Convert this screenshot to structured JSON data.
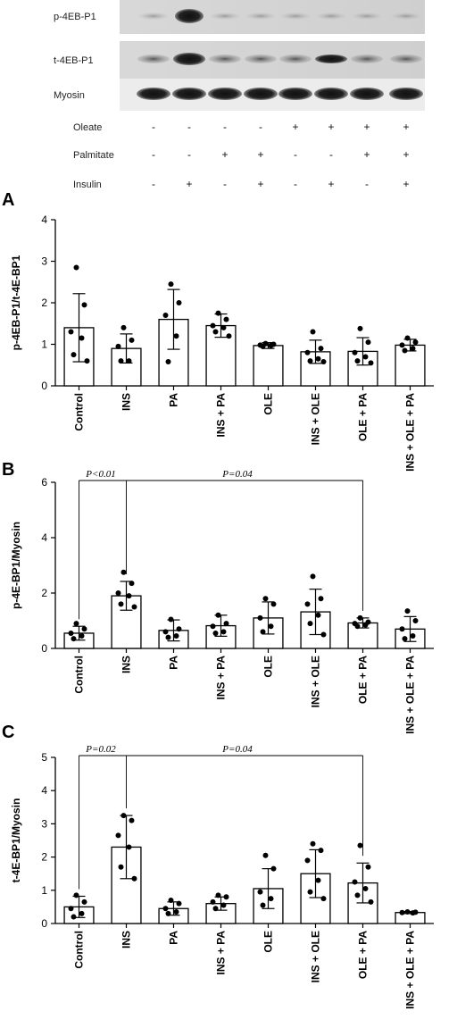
{
  "blot": {
    "bands": [
      {
        "label": "p-4EB-P1"
      },
      {
        "label": "t-4EB-P1"
      },
      {
        "label": "Myosin"
      }
    ],
    "treatments": [
      {
        "label": "Oleate",
        "signs": [
          "-",
          "-",
          "-",
          "-",
          "+",
          "+",
          "+",
          "+"
        ]
      },
      {
        "label": "Palmitate",
        "signs": [
          "-",
          "-",
          "+",
          "+",
          "-",
          "-",
          "+",
          "+"
        ]
      },
      {
        "label": "Insulin",
        "signs": [
          "-",
          "+",
          "-",
          "+",
          "-",
          "+",
          "-",
          "+"
        ]
      }
    ]
  },
  "chart_data": [
    {
      "panel": "A",
      "type": "bar",
      "ylabel": "p-4EB-P1/t-4E-BP1",
      "ylim": [
        0,
        4
      ],
      "yticks": [
        0,
        1,
        2,
        3,
        4
      ],
      "categories": [
        "Control",
        "INS",
        "PA",
        "INS + PA",
        "OLE",
        "INS + OLE",
        "OLE + PA",
        "INS + OLE + PA"
      ],
      "values": [
        1.4,
        0.9,
        1.6,
        1.45,
        0.97,
        0.82,
        0.83,
        0.98
      ],
      "errors": [
        0.82,
        0.35,
        0.72,
        0.28,
        0.07,
        0.28,
        0.33,
        0.14
      ],
      "points": [
        [
          2.85,
          1.95,
          1.3,
          1.15,
          0.75,
          0.6
        ],
        [
          1.4,
          1.1,
          0.95,
          0.6,
          0.6
        ],
        [
          2.45,
          2.0,
          1.7,
          1.2,
          0.58
        ],
        [
          1.75,
          1.6,
          1.45,
          1.4,
          1.3,
          1.2
        ],
        [
          1.02,
          1.0,
          0.98,
          0.97,
          0.95
        ],
        [
          1.3,
          0.9,
          0.8,
          0.65,
          0.6,
          0.58
        ],
        [
          1.38,
          1.05,
          0.8,
          0.7,
          0.6,
          0.55
        ],
        [
          1.15,
          1.05,
          0.98,
          0.9,
          0.85
        ]
      ],
      "annotations": []
    },
    {
      "panel": "B",
      "type": "bar",
      "ylabel": "p-4E-BP1/Myosin",
      "ylim": [
        0,
        6
      ],
      "yticks": [
        0,
        2,
        4,
        6
      ],
      "categories": [
        "Control",
        "INS",
        "PA",
        "INS + PA",
        "OLE",
        "INS + OLE",
        "OLE + PA",
        "INS + OLE + PA"
      ],
      "values": [
        0.55,
        1.9,
        0.65,
        0.82,
        1.1,
        1.32,
        0.92,
        0.7
      ],
      "errors": [
        0.25,
        0.52,
        0.38,
        0.38,
        0.58,
        0.82,
        0.18,
        0.45
      ],
      "points": [
        [
          0.9,
          0.7,
          0.55,
          0.45,
          0.35
        ],
        [
          2.75,
          2.35,
          2.0,
          1.9,
          1.6,
          1.5
        ],
        [
          1.05,
          0.7,
          0.6,
          0.45,
          0.4
        ],
        [
          1.2,
          0.9,
          0.8,
          0.6,
          0.55
        ],
        [
          1.8,
          1.6,
          1.1,
          0.8,
          0.6
        ],
        [
          2.6,
          1.8,
          1.6,
          1.2,
          0.9,
          0.5
        ],
        [
          1.1,
          0.95,
          0.9,
          0.85,
          0.8
        ],
        [
          1.35,
          1.0,
          0.7,
          0.45,
          0.35
        ]
      ],
      "annotations": [
        {
          "text": "P<0.01",
          "from": 0,
          "to": 1
        },
        {
          "text": "P=0.04",
          "from": 1,
          "to": 6
        }
      ]
    },
    {
      "panel": "C",
      "type": "bar",
      "ylabel": "t-4E-BP1/Myosin",
      "ylim": [
        0,
        5
      ],
      "yticks": [
        0,
        1,
        2,
        3,
        4,
        5
      ],
      "categories": [
        "Control",
        "INS",
        "PA",
        "INS + PA",
        "OLE",
        "INS + OLE",
        "OLE + PA",
        "INS + OLE + PA"
      ],
      "values": [
        0.5,
        2.3,
        0.45,
        0.6,
        1.05,
        1.5,
        1.22,
        0.33
      ],
      "errors": [
        0.32,
        0.95,
        0.2,
        0.2,
        0.6,
        0.72,
        0.6,
        0.03
      ],
      "points": [
        [
          0.85,
          0.65,
          0.45,
          0.3,
          0.2
        ],
        [
          3.25,
          3.1,
          2.65,
          2.3,
          1.7,
          1.35
        ],
        [
          0.7,
          0.6,
          0.45,
          0.35,
          0.3
        ],
        [
          0.85,
          0.8,
          0.65,
          0.55,
          0.45
        ],
        [
          2.05,
          1.65,
          0.95,
          0.75,
          0.55
        ],
        [
          2.4,
          2.2,
          1.9,
          1.3,
          0.95,
          0.75
        ],
        [
          2.35,
          1.7,
          1.25,
          1.05,
          0.85,
          0.65
        ],
        [
          0.35,
          0.34,
          0.33,
          0.32
        ]
      ],
      "annotations": [
        {
          "text": "P=0.02",
          "from": 0,
          "to": 1
        },
        {
          "text": "P=0.04",
          "from": 1,
          "to": 6
        }
      ]
    }
  ]
}
